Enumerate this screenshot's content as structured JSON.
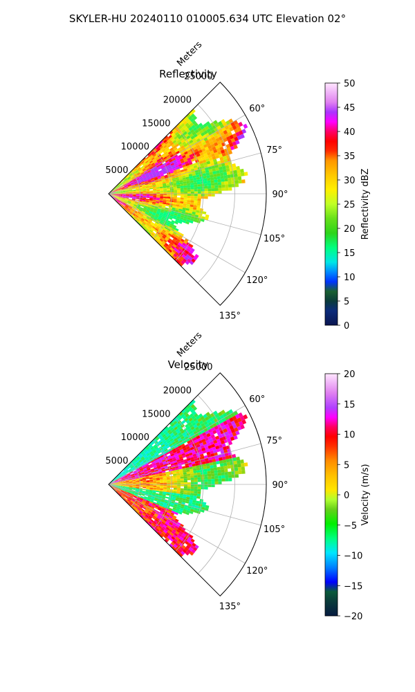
{
  "figure": {
    "suptitle": "SKYLER-HU  20240110  010005.634 UTC Elevation 02°"
  },
  "chart_data": [
    {
      "type": "heatmap",
      "subtype": "polar-sector-ppi",
      "title": "Reflectivity",
      "radial_axis_label": "Meters",
      "range_ticks": [
        5000,
        10000,
        15000,
        20000,
        25000
      ],
      "range_tick_labels": [
        "5000",
        "10000",
        "15000",
        "20000",
        "25000"
      ],
      "rmax": 25000,
      "azimuth_range_deg": [
        45,
        135
      ],
      "azimuth_ticks": [
        60,
        75,
        90,
        105,
        120,
        135
      ],
      "azimuth_tick_labels": [
        "60°",
        "75°",
        "90°",
        "105°",
        "120°",
        "135°"
      ],
      "grid": true,
      "colorbar": {
        "label": "Reflectivity dBZ",
        "vmin": 0,
        "vmax": 50,
        "ticks": [
          0,
          5,
          10,
          15,
          20,
          25,
          30,
          35,
          40,
          45,
          50
        ],
        "tick_labels": [
          "0",
          "5",
          "10",
          "15",
          "20",
          "25",
          "30",
          "35",
          "40",
          "45",
          "50"
        ]
      },
      "colors": {
        "low": "#0a1a5a",
        "mid": "#66e01a",
        "high": "#ff1a1a",
        "top": "#ffe6ff"
      }
    },
    {
      "type": "heatmap",
      "subtype": "polar-sector-ppi",
      "title": "Velocity",
      "radial_axis_label": "Meters",
      "range_ticks": [
        5000,
        10000,
        15000,
        20000,
        25000
      ],
      "range_tick_labels": [
        "5000",
        "10000",
        "15000",
        "20000",
        "25000"
      ],
      "rmax": 25000,
      "azimuth_range_deg": [
        45,
        135
      ],
      "azimuth_ticks": [
        60,
        75,
        90,
        105,
        120,
        135
      ],
      "azimuth_tick_labels": [
        "60°",
        "75°",
        "90°",
        "105°",
        "120°",
        "135°"
      ],
      "grid": true,
      "colorbar": {
        "label": "Velocity (m/s)",
        "vmin": -20,
        "vmax": 20,
        "ticks": [
          -20,
          -15,
          -10,
          -5,
          0,
          5,
          10,
          15,
          20
        ],
        "tick_labels": [
          "−20",
          "−15",
          "−10",
          "−5",
          "0",
          "5",
          "10",
          "15",
          "20"
        ]
      },
      "colors": {
        "low": "#061a40",
        "mid": "#ffe000",
        "high": "#ff0a0a",
        "top": "#ffe6ff"
      }
    }
  ]
}
